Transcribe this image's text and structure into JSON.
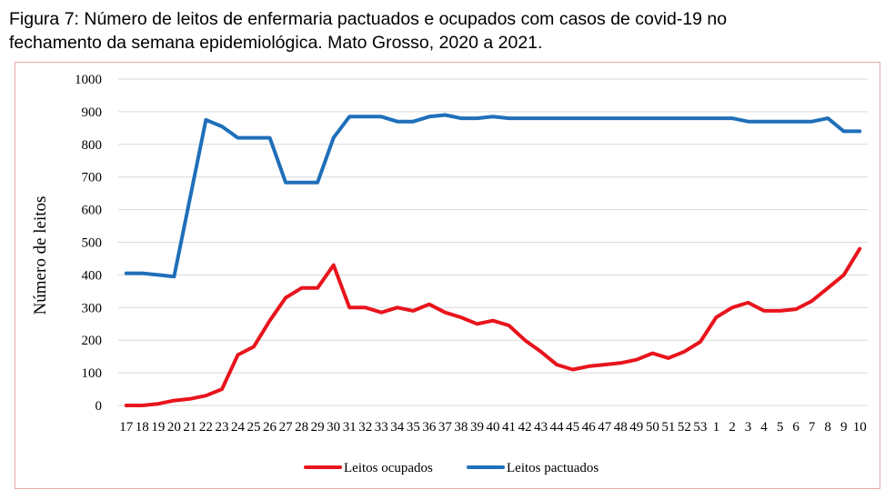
{
  "figure": {
    "caption_line1": "Figura 7: Número de leitos de enfermaria pactuados e ocupados com casos de covid-19 no",
    "caption_line2": "fechamento da semana epidemiológica. Mato Grosso, 2020 a 2021."
  },
  "chart_data": {
    "type": "line",
    "title": "",
    "xlabel": "",
    "ylabel": "Número de leitos",
    "ylim": [
      0,
      1000
    ],
    "yticks": [
      0,
      100,
      200,
      300,
      400,
      500,
      600,
      700,
      800,
      900,
      1000
    ],
    "grid": "horizontal",
    "legend_position": "bottom",
    "categories": [
      "17",
      "18",
      "19",
      "20",
      "21",
      "22",
      "23",
      "24",
      "25",
      "26",
      "27",
      "28",
      "29",
      "30",
      "31",
      "32",
      "33",
      "34",
      "35",
      "36",
      "37",
      "38",
      "39",
      "40",
      "41",
      "42",
      "43",
      "44",
      "45",
      "46",
      "47",
      "48",
      "49",
      "50",
      "51",
      "52",
      "53",
      "1",
      "2",
      "3",
      "4",
      "5",
      "6",
      "7",
      "8",
      "9",
      "10"
    ],
    "series": [
      {
        "name": "Leitos ocupados",
        "color": "#e8141c",
        "values": [
          0,
          0,
          5,
          15,
          20,
          30,
          50,
          155,
          180,
          260,
          330,
          360,
          360,
          430,
          300,
          300,
          285,
          300,
          290,
          310,
          285,
          270,
          250,
          260,
          245,
          200,
          165,
          125,
          110,
          120,
          125,
          130,
          140,
          160,
          145,
          165,
          195,
          270,
          300,
          315,
          290,
          290,
          295,
          320,
          360,
          400,
          480
        ]
      },
      {
        "name": "Leitos pactuados",
        "color": "#1f6fba",
        "values": [
          405,
          405,
          400,
          395,
          635,
          875,
          855,
          820,
          820,
          820,
          683,
          683,
          683,
          820,
          885,
          885,
          885,
          870,
          870,
          885,
          890,
          880,
          880,
          885,
          880,
          880,
          880,
          880,
          880,
          880,
          880,
          880,
          880,
          880,
          880,
          880,
          880,
          880,
          880,
          870,
          870,
          870,
          870,
          870,
          880,
          840,
          840
        ]
      }
    ]
  }
}
